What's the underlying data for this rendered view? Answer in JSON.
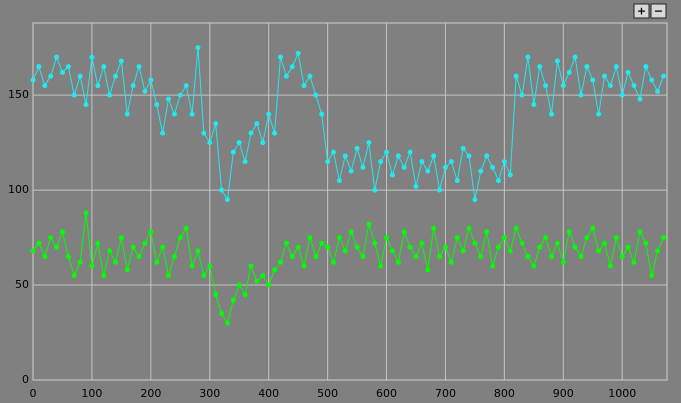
{
  "chart_data": {
    "type": "line",
    "x": [
      0,
      10,
      20,
      30,
      40,
      50,
      60,
      70,
      80,
      90,
      100,
      110,
      120,
      130,
      140,
      150,
      160,
      170,
      180,
      190,
      200,
      210,
      220,
      230,
      240,
      250,
      260,
      270,
      280,
      290,
      300,
      310,
      320,
      330,
      340,
      350,
      360,
      370,
      380,
      390,
      400,
      410,
      420,
      430,
      440,
      450,
      460,
      470,
      480,
      490,
      500,
      510,
      520,
      530,
      540,
      550,
      560,
      570,
      580,
      590,
      600,
      610,
      620,
      630,
      640,
      650,
      660,
      670,
      680,
      690,
      700,
      710,
      720,
      730,
      740,
      750,
      760,
      770,
      780,
      790,
      800,
      810,
      820,
      830,
      840,
      850,
      860,
      870,
      880,
      890,
      900,
      910,
      920,
      930,
      940,
      950,
      960,
      970,
      980,
      990,
      1000,
      1010,
      1020,
      1030,
      1040,
      1050,
      1060,
      1070
    ],
    "series": [
      {
        "color": "#22e8f0",
        "values": [
          158,
          165,
          155,
          160,
          170,
          162,
          165,
          150,
          160,
          145,
          170,
          155,
          165,
          150,
          160,
          168,
          140,
          155,
          165,
          152,
          158,
          145,
          130,
          148,
          140,
          150,
          155,
          140,
          175,
          130,
          125,
          135,
          100,
          95,
          120,
          125,
          115,
          130,
          135,
          125,
          140,
          130,
          170,
          160,
          165,
          172,
          155,
          160,
          150,
          140,
          115,
          120,
          105,
          118,
          110,
          122,
          112,
          125,
          100,
          115,
          120,
          108,
          118,
          112,
          120,
          102,
          115,
          110,
          118,
          100,
          112,
          115,
          105,
          122,
          118,
          95,
          110,
          118,
          112,
          105,
          115,
          108,
          160,
          150,
          170,
          145,
          165,
          155,
          140,
          168,
          155,
          162,
          170,
          150,
          165,
          158,
          140,
          160,
          155,
          165,
          150,
          162,
          155,
          148,
          165,
          158,
          152,
          160
        ]
      },
      {
        "color": "#00ff00",
        "values": [
          68,
          72,
          65,
          75,
          70,
          78,
          65,
          55,
          62,
          88,
          60,
          72,
          55,
          68,
          62,
          75,
          58,
          70,
          65,
          72,
          78,
          62,
          70,
          55,
          65,
          75,
          80,
          60,
          68,
          55,
          60,
          45,
          35,
          30,
          42,
          50,
          45,
          60,
          52,
          55,
          50,
          58,
          62,
          72,
          65,
          70,
          60,
          75,
          65,
          72,
          70,
          62,
          75,
          68,
          78,
          70,
          65,
          82,
          72,
          60,
          75,
          68,
          62,
          78,
          70,
          65,
          72,
          58,
          80,
          65,
          70,
          62,
          75,
          68,
          80,
          72,
          65,
          78,
          60,
          70,
          75,
          68,
          80,
          72,
          65,
          60,
          70,
          75,
          65,
          72,
          62,
          78,
          70,
          65,
          75,
          80,
          68,
          72,
          60,
          75,
          65,
          70,
          62,
          78,
          72,
          55,
          68,
          75
        ]
      }
    ],
    "xlim": [
      0,
      1076
    ],
    "ylim": [
      0,
      188
    ],
    "xticks": [
      0,
      100,
      200,
      300,
      400,
      500,
      600,
      700,
      800,
      900,
      1000
    ],
    "yticks": [
      0,
      50,
      100,
      150
    ],
    "grid": true
  },
  "controls": {
    "zoom_in": "+",
    "zoom_out": "−"
  }
}
